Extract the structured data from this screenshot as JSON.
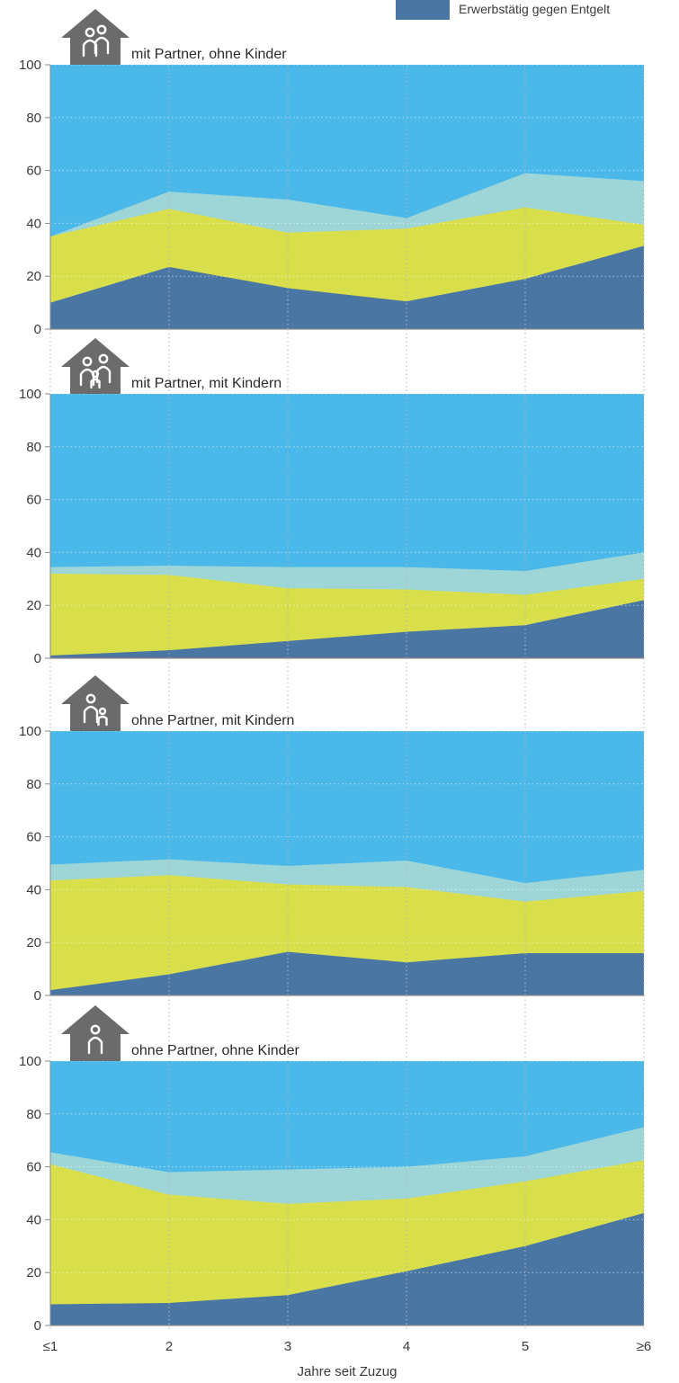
{
  "legend": {
    "label": "Erwerbstätig gegen Entgelt",
    "color": "#4a76a3"
  },
  "colors": {
    "top": "#4bb8ea",
    "light": "#9ed6d8",
    "yellow": "#d8df4b",
    "dark": "#4a76a3",
    "house": "#6b6b6b",
    "grid": "#b5b5b5",
    "axis": "#8a8a8a"
  },
  "chart_data": [
    {
      "type": "area",
      "title": "mit Partner, ohne Kinder",
      "icon": "house-couple-icon",
      "x": [
        "≤1",
        "2",
        "3",
        "4",
        "5",
        "≥6"
      ],
      "ylim": [
        0,
        100
      ],
      "yticks": [
        0,
        20,
        40,
        60,
        80,
        100
      ],
      "series_cumulative": [
        {
          "color_key": "dark",
          "values": [
            10,
            23.5,
            15.5,
            10.5,
            19,
            31.5
          ]
        },
        {
          "color_key": "yellow",
          "values": [
            35,
            45.5,
            36.5,
            38,
            46,
            39.5
          ]
        },
        {
          "color_key": "light",
          "values": [
            35,
            52,
            49,
            42,
            59,
            56
          ]
        },
        {
          "color_key": "top",
          "values": [
            100,
            100,
            100,
            100,
            100,
            100
          ]
        }
      ]
    },
    {
      "type": "area",
      "title": "mit Partner, mit Kindern",
      "icon": "house-family-icon",
      "x": [
        "≤1",
        "2",
        "3",
        "4",
        "5",
        "≥6"
      ],
      "ylim": [
        0,
        100
      ],
      "yticks": [
        0,
        20,
        40,
        60,
        80,
        100
      ],
      "series_cumulative": [
        {
          "color_key": "dark",
          "values": [
            1,
            3,
            6.5,
            10,
            12.5,
            22
          ]
        },
        {
          "color_key": "yellow",
          "values": [
            32,
            31.5,
            26.5,
            26,
            24,
            30
          ]
        },
        {
          "color_key": "light",
          "values": [
            34.5,
            35,
            34.5,
            34.5,
            33,
            40
          ]
        },
        {
          "color_key": "top",
          "values": [
            100,
            100,
            100,
            100,
            100,
            100
          ]
        }
      ]
    },
    {
      "type": "area",
      "title": "ohne Partner, mit Kindern",
      "icon": "house-single-parent-icon",
      "x": [
        "≤1",
        "2",
        "3",
        "4",
        "5",
        "≥6"
      ],
      "ylim": [
        0,
        100
      ],
      "yticks": [
        0,
        20,
        40,
        60,
        80,
        100
      ],
      "series_cumulative": [
        {
          "color_key": "dark",
          "values": [
            2,
            8,
            16.5,
            12.5,
            16,
            16
          ]
        },
        {
          "color_key": "yellow",
          "values": [
            43.5,
            45.5,
            42,
            41,
            35.5,
            39.5
          ]
        },
        {
          "color_key": "light",
          "values": [
            49.5,
            51.5,
            49,
            51,
            42.5,
            47.5
          ]
        },
        {
          "color_key": "top",
          "values": [
            100,
            100,
            100,
            100,
            100,
            100
          ]
        }
      ]
    },
    {
      "type": "area",
      "title": "ohne Partner, ohne Kinder",
      "icon": "house-single-icon",
      "x": [
        "≤1",
        "2",
        "3",
        "4",
        "5",
        "≥6"
      ],
      "xlabel": "Jahre seit Zuzug",
      "ylim": [
        0,
        100
      ],
      "yticks": [
        0,
        20,
        40,
        60,
        80,
        100
      ],
      "series_cumulative": [
        {
          "color_key": "dark",
          "values": [
            8,
            8.5,
            11.5,
            20.5,
            30,
            42.5
          ]
        },
        {
          "color_key": "yellow",
          "values": [
            61,
            49.5,
            46,
            48,
            54.5,
            62.5
          ]
        },
        {
          "color_key": "light",
          "values": [
            65.5,
            58,
            59,
            60,
            64,
            75
          ]
        },
        {
          "color_key": "top",
          "values": [
            100,
            100,
            100,
            100,
            100,
            100
          ]
        }
      ]
    }
  ]
}
